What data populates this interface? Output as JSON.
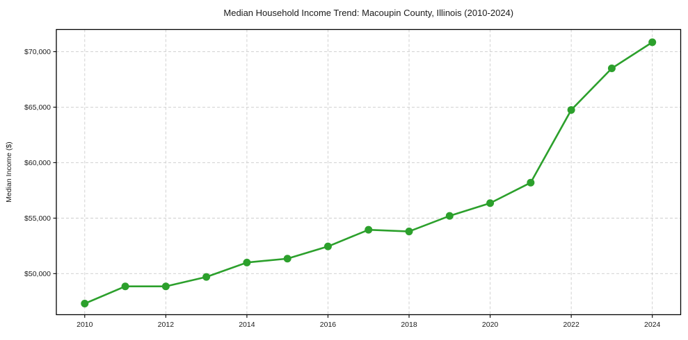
{
  "chart_data": {
    "type": "line",
    "title": "Median Household Income Trend: Macoupin County, Illinois (2010-2024)",
    "xlabel": "",
    "ylabel": "Median Income ($)",
    "x": [
      2010,
      2011,
      2012,
      2013,
      2014,
      2015,
      2016,
      2017,
      2018,
      2019,
      2020,
      2021,
      2022,
      2023,
      2024
    ],
    "series": [
      {
        "name": "Median Household Income",
        "values": [
          47300,
          48850,
          48850,
          49700,
          51000,
          51350,
          52450,
          53950,
          53800,
          55200,
          56350,
          58200,
          64750,
          68500,
          70850
        ]
      }
    ],
    "x_ticks": [
      2010,
      2012,
      2014,
      2016,
      2018,
      2020,
      2022,
      2024
    ],
    "x_tick_labels": [
      "2010",
      "2012",
      "2014",
      "2016",
      "2018",
      "2020",
      "2022",
      "2024"
    ],
    "y_ticks": [
      50000,
      55000,
      60000,
      65000,
      70000
    ],
    "y_tick_labels": [
      "$50,000",
      "$55,000",
      "$60,000",
      "$65,000",
      "$70,000"
    ],
    "xlim": [
      2009.3,
      2024.7
    ],
    "ylim": [
      46300,
      72000
    ],
    "grid": true,
    "grid_style": "dashed",
    "legend": false,
    "line_color": "#2ca02c",
    "marker_color": "#2ca02c",
    "grid_color": "#cccccc",
    "axis_color": "#000000",
    "text_color": "#1a1a1a"
  }
}
